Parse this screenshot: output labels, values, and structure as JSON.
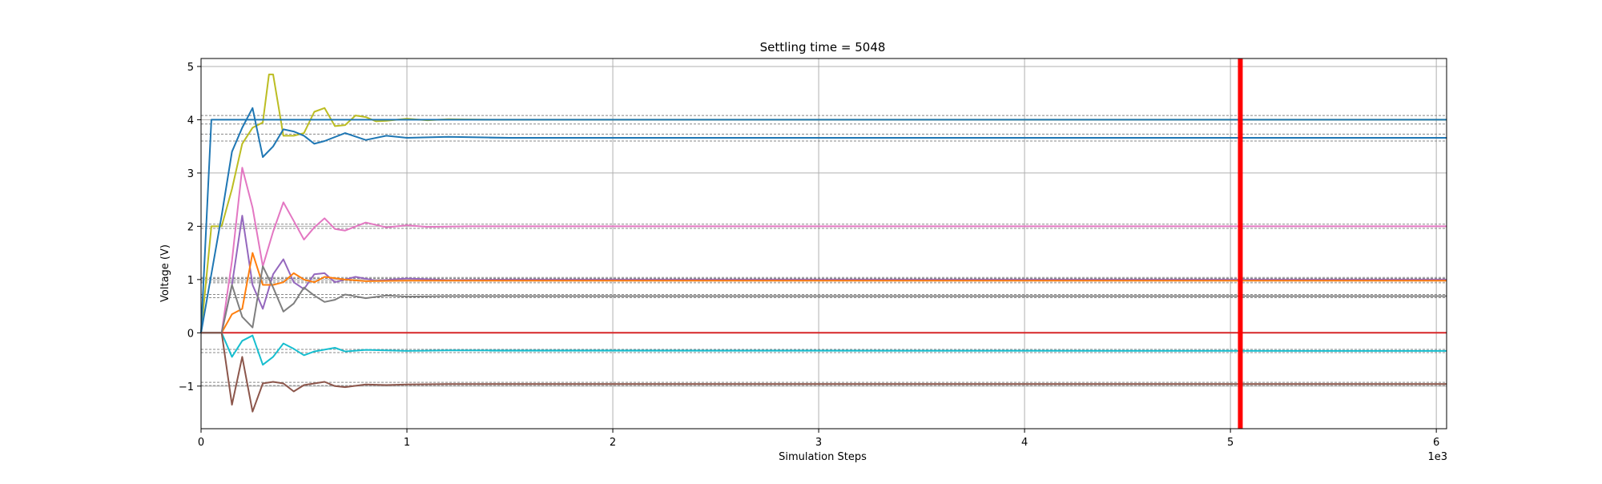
{
  "chart_data": {
    "type": "line",
    "title": "Settling time = 5048",
    "xlabel": "Simulation Steps",
    "ylabel": "Voltage (V)",
    "x_multiplier_label": "1e3",
    "xlim": [
      0,
      6050
    ],
    "ylim": [
      -1.8,
      5.15
    ],
    "x_ticks": [
      0,
      1000,
      2000,
      3000,
      4000,
      5000,
      6000
    ],
    "x_tick_labels": [
      "0",
      "1",
      "2",
      "3",
      "4",
      "5",
      "6"
    ],
    "y_ticks": [
      -1,
      0,
      1,
      2,
      3,
      4,
      5
    ],
    "y_tick_labels": [
      "−1",
      "0",
      "1",
      "2",
      "3",
      "4",
      "5"
    ],
    "grid": true,
    "settling_marker": {
      "x": 5048,
      "color": "#ff0000"
    },
    "series": [
      {
        "color": "#bcbd22",
        "points": [
          [
            0,
            0
          ],
          [
            50,
            2.0
          ],
          [
            100,
            2.0
          ],
          [
            150,
            2.7
          ],
          [
            200,
            3.55
          ],
          [
            250,
            3.85
          ],
          [
            300,
            3.95
          ],
          [
            330,
            4.85
          ],
          [
            350,
            4.85
          ],
          [
            400,
            3.7
          ],
          [
            450,
            3.7
          ],
          [
            500,
            3.75
          ],
          [
            550,
            4.15
          ],
          [
            600,
            4.22
          ],
          [
            650,
            3.88
          ],
          [
            700,
            3.9
          ],
          [
            750,
            4.08
          ],
          [
            800,
            4.05
          ],
          [
            850,
            3.97
          ],
          [
            900,
            3.98
          ],
          [
            1000,
            4.02
          ],
          [
            1100,
            3.99
          ],
          [
            1200,
            4.01
          ],
          [
            1400,
            4.0
          ],
          [
            6050,
            4.0
          ]
        ],
        "target": 4.0,
        "band": [
          3.92,
          4.08
        ]
      },
      {
        "color": "#1f77b4",
        "points": [
          [
            0,
            0
          ],
          [
            50,
            4.0
          ],
          [
            250,
            4.0
          ],
          [
            6050,
            4.0
          ]
        ],
        "target": null,
        "band": null
      },
      {
        "color": "#1f77b4",
        "points": [
          [
            0,
            0
          ],
          [
            100,
            2.2
          ],
          [
            150,
            3.4
          ],
          [
            200,
            3.85
          ],
          [
            250,
            4.22
          ],
          [
            300,
            3.3
          ],
          [
            350,
            3.5
          ],
          [
            400,
            3.82
          ],
          [
            450,
            3.78
          ],
          [
            500,
            3.7
          ],
          [
            550,
            3.55
          ],
          [
            600,
            3.6
          ],
          [
            700,
            3.75
          ],
          [
            800,
            3.62
          ],
          [
            900,
            3.7
          ],
          [
            1000,
            3.66
          ],
          [
            1200,
            3.68
          ],
          [
            1500,
            3.66
          ],
          [
            6050,
            3.66
          ]
        ],
        "target": 3.66,
        "band": [
          3.6,
          3.73
        ]
      },
      {
        "color": "#e377c2",
        "points": [
          [
            0,
            0
          ],
          [
            100,
            0
          ],
          [
            150,
            1.35
          ],
          [
            200,
            3.1
          ],
          [
            250,
            2.35
          ],
          [
            300,
            1.25
          ],
          [
            350,
            1.9
          ],
          [
            400,
            2.45
          ],
          [
            450,
            2.1
          ],
          [
            500,
            1.75
          ],
          [
            550,
            1.98
          ],
          [
            600,
            2.15
          ],
          [
            650,
            1.95
          ],
          [
            700,
            1.92
          ],
          [
            800,
            2.07
          ],
          [
            900,
            1.98
          ],
          [
            1000,
            2.02
          ],
          [
            1100,
            1.99
          ],
          [
            1300,
            2.0
          ],
          [
            6050,
            2.0
          ]
        ],
        "target": 2.0,
        "band": [
          1.96,
          2.04
        ]
      },
      {
        "color": "#9467bd",
        "points": [
          [
            0,
            0
          ],
          [
            100,
            0
          ],
          [
            150,
            0.9
          ],
          [
            200,
            2.2
          ],
          [
            250,
            0.9
          ],
          [
            300,
            0.45
          ],
          [
            350,
            1.1
          ],
          [
            400,
            1.38
          ],
          [
            450,
            0.95
          ],
          [
            500,
            0.82
          ],
          [
            550,
            1.1
          ],
          [
            600,
            1.12
          ],
          [
            650,
            0.95
          ],
          [
            750,
            1.05
          ],
          [
            850,
            0.98
          ],
          [
            1000,
            1.02
          ],
          [
            1200,
            0.99
          ],
          [
            1500,
            1.0
          ],
          [
            6050,
            1.0
          ]
        ],
        "target": 1.0,
        "band": [
          0.97,
          1.04
        ]
      },
      {
        "color": "#ff7f0e",
        "points": [
          [
            0,
            0
          ],
          [
            100,
            0
          ],
          [
            150,
            0.35
          ],
          [
            200,
            0.45
          ],
          [
            250,
            1.5
          ],
          [
            300,
            0.9
          ],
          [
            350,
            0.9
          ],
          [
            400,
            0.95
          ],
          [
            450,
            1.12
          ],
          [
            500,
            1.0
          ],
          [
            550,
            0.95
          ],
          [
            600,
            1.05
          ],
          [
            700,
            1.0
          ],
          [
            800,
            0.97
          ],
          [
            1000,
            0.98
          ],
          [
            6050,
            0.98
          ]
        ],
        "target": 0.98,
        "band": [
          0.94,
          1.02
        ]
      },
      {
        "color": "#7f7f7f",
        "points": [
          [
            0,
            0
          ],
          [
            100,
            0
          ],
          [
            150,
            0.9
          ],
          [
            200,
            0.3
          ],
          [
            250,
            0.1
          ],
          [
            300,
            1.25
          ],
          [
            350,
            0.85
          ],
          [
            400,
            0.4
          ],
          [
            450,
            0.55
          ],
          [
            500,
            0.85
          ],
          [
            550,
            0.7
          ],
          [
            600,
            0.58
          ],
          [
            650,
            0.62
          ],
          [
            700,
            0.72
          ],
          [
            800,
            0.65
          ],
          [
            900,
            0.7
          ],
          [
            1000,
            0.68
          ],
          [
            1200,
            0.69
          ],
          [
            6050,
            0.69
          ]
        ],
        "target": 0.69,
        "band": [
          0.66,
          0.72
        ]
      },
      {
        "color": "#d62728",
        "points": [
          [
            0,
            0
          ],
          [
            6050,
            0
          ]
        ],
        "target": null,
        "band": null
      },
      {
        "color": "#17becf",
        "points": [
          [
            0,
            0
          ],
          [
            100,
            0
          ],
          [
            150,
            -0.45
          ],
          [
            200,
            -0.15
          ],
          [
            250,
            -0.05
          ],
          [
            300,
            -0.6
          ],
          [
            350,
            -0.45
          ],
          [
            400,
            -0.2
          ],
          [
            450,
            -0.3
          ],
          [
            500,
            -0.42
          ],
          [
            550,
            -0.35
          ],
          [
            650,
            -0.28
          ],
          [
            700,
            -0.35
          ],
          [
            800,
            -0.32
          ],
          [
            900,
            -0.33
          ],
          [
            1000,
            -0.34
          ],
          [
            1200,
            -0.33
          ],
          [
            6050,
            -0.34
          ]
        ],
        "target": -0.34,
        "band": [
          -0.37,
          -0.31
        ]
      },
      {
        "color": "#8c564b",
        "points": [
          [
            0,
            0
          ],
          [
            100,
            0
          ],
          [
            150,
            -1.35
          ],
          [
            200,
            -0.45
          ],
          [
            250,
            -1.48
          ],
          [
            300,
            -0.95
          ],
          [
            350,
            -0.92
          ],
          [
            400,
            -0.95
          ],
          [
            450,
            -1.1
          ],
          [
            500,
            -0.98
          ],
          [
            550,
            -0.95
          ],
          [
            600,
            -0.92
          ],
          [
            650,
            -1.0
          ],
          [
            700,
            -1.02
          ],
          [
            800,
            -0.97
          ],
          [
            900,
            -0.98
          ],
          [
            1000,
            -0.97
          ],
          [
            1200,
            -0.96
          ],
          [
            6050,
            -0.96
          ]
        ],
        "target": -0.96,
        "band": [
          -0.99,
          -0.93
        ]
      }
    ]
  }
}
